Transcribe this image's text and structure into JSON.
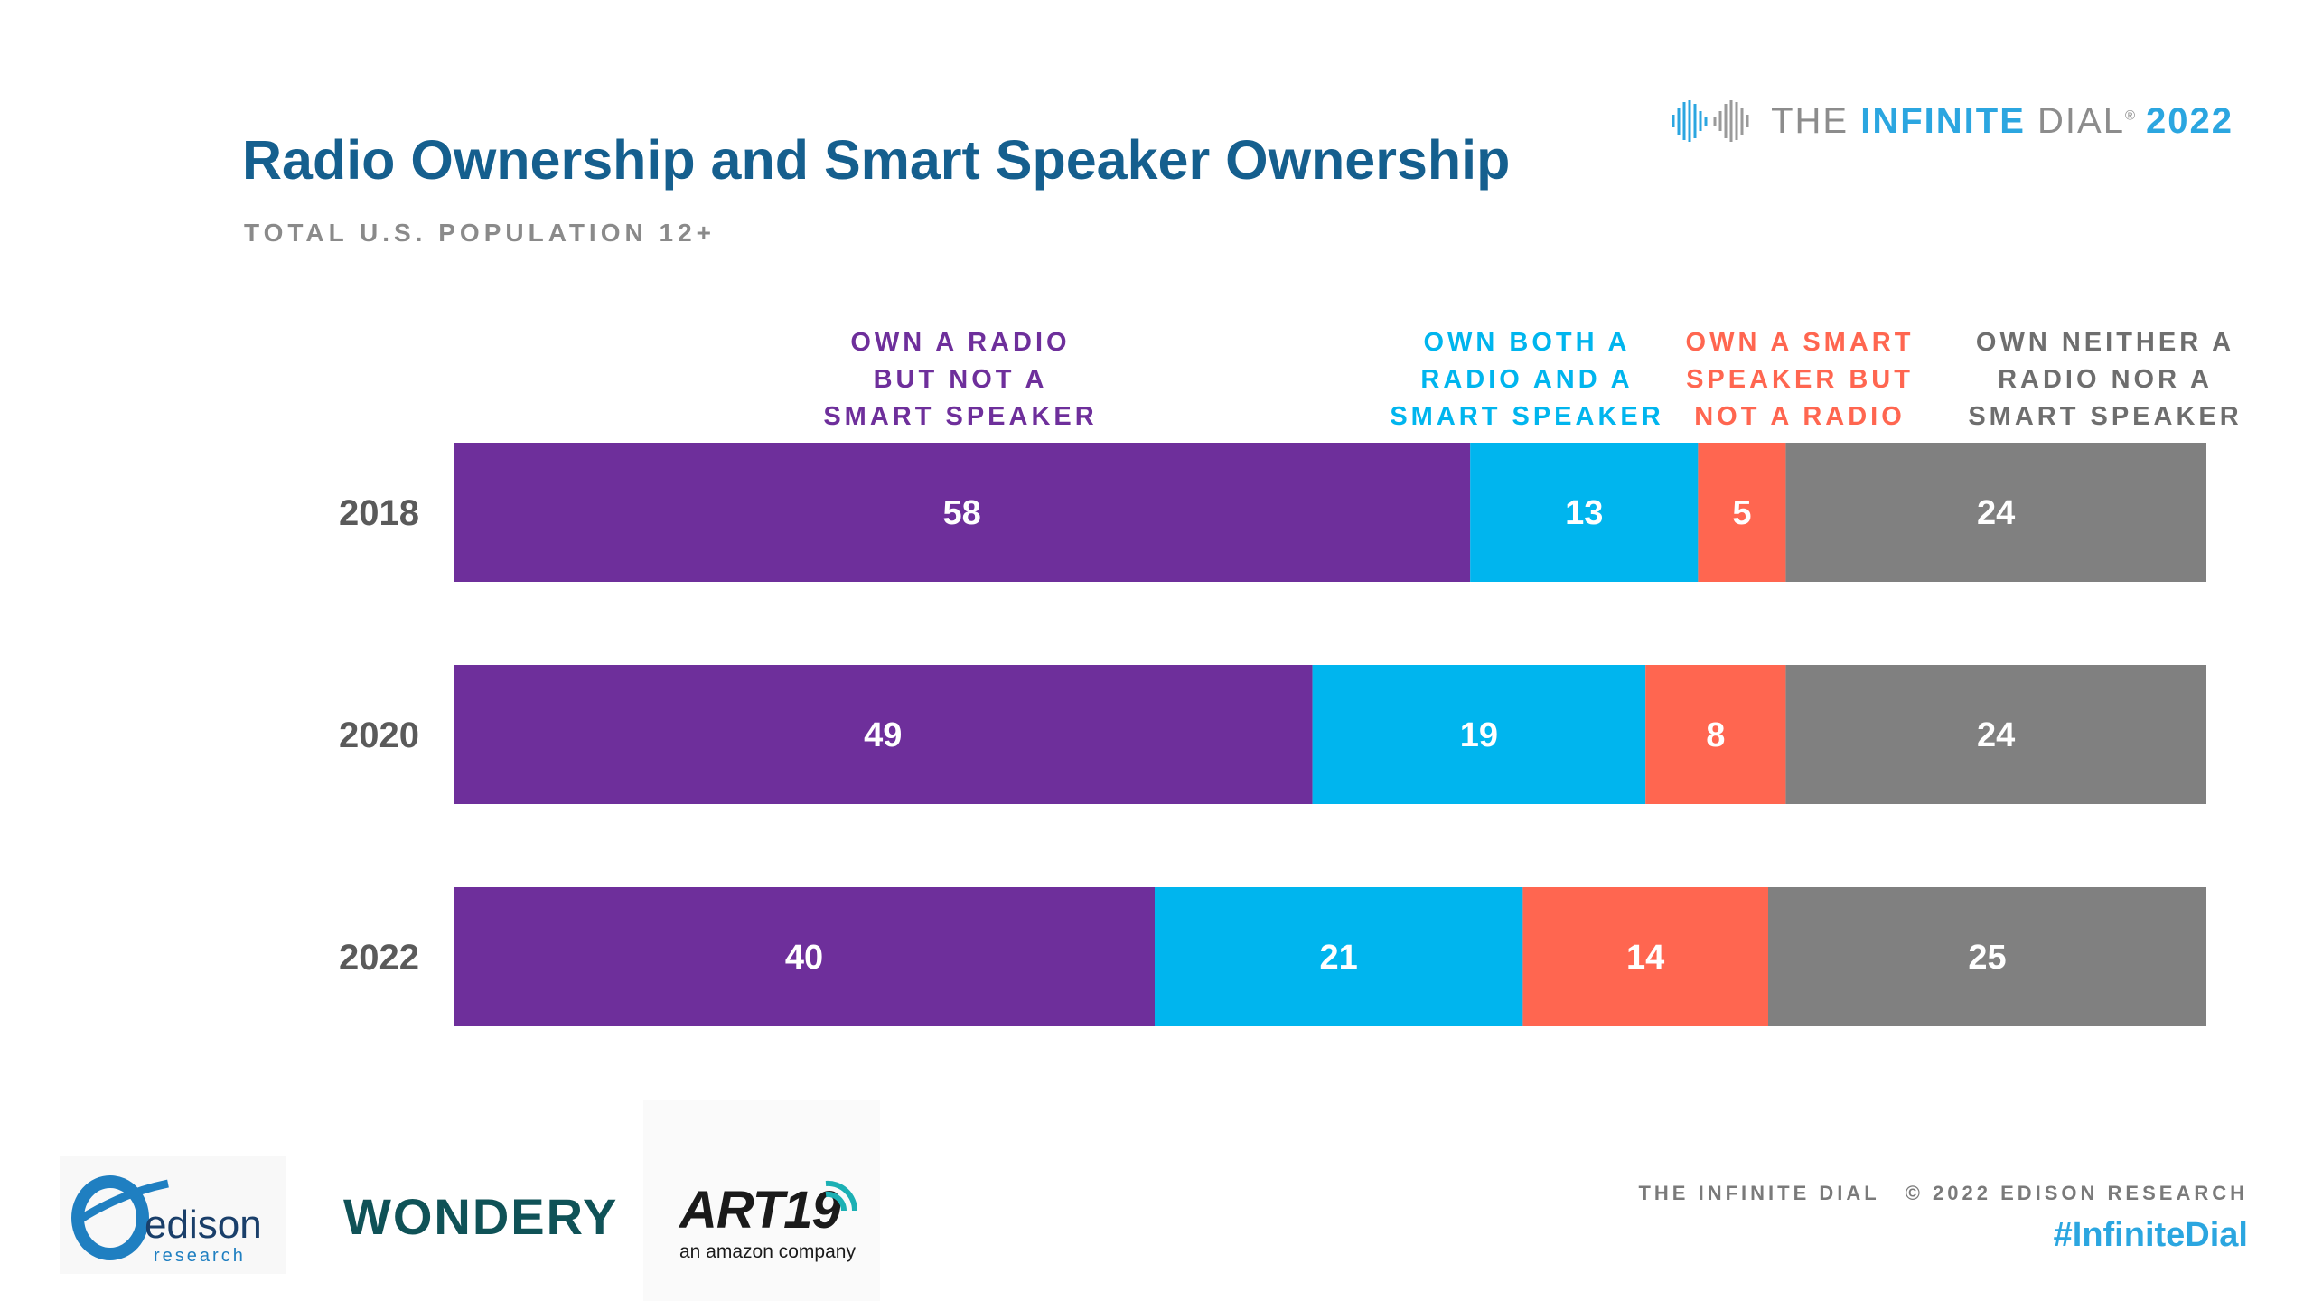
{
  "title": "Radio Ownership and Smart Speaker Ownership",
  "subtitle": "TOTAL U.S. POPULATION 12+",
  "brand": {
    "icon": "infinite-dial-logo-icon",
    "the": "THE",
    "infinite": "INFINITE",
    "dial": "DIAL",
    "registered": "®",
    "year": "2022"
  },
  "footer": {
    "credit_left": "THE INFINITE DIAL",
    "credit_right": "© 2022 EDISON RESEARCH",
    "hashtag": "#InfiniteDial"
  },
  "logos": {
    "edison": "edison",
    "edison_sub": "research",
    "wondery": "WONDERY",
    "art19": "ART19",
    "art19_tag": "an amazon company"
  },
  "colors": {
    "title": "#155f8e",
    "purple": "#6e2f9b",
    "blue": "#00b5ee",
    "orange": "#ff6650",
    "gray": "#808080",
    "brand_blue": "#2ba6e0"
  },
  "chart_data": {
    "type": "bar",
    "orientation": "horizontal",
    "stacked": true,
    "categories": [
      "2018",
      "2020",
      "2022"
    ],
    "series": [
      {
        "name": "OWN A RADIO BUT NOT A SMART SPEAKER",
        "color": "#6e2f9b",
        "values": [
          58,
          49,
          40
        ]
      },
      {
        "name": "OWN BOTH A RADIO AND A SMART SPEAKER",
        "color": "#00b5ee",
        "values": [
          13,
          19,
          21
        ]
      },
      {
        "name": "OWN A SMART SPEAKER BUT NOT A RADIO",
        "color": "#ff6650",
        "values": [
          5,
          8,
          14
        ]
      },
      {
        "name": "OWN NEITHER A RADIO NOR A SMART SPEAKER",
        "color": "#808080",
        "values": [
          24,
          24,
          25
        ]
      }
    ],
    "series_label_lines": [
      [
        "OWN A RADIO",
        "BUT NOT A",
        "SMART SPEAKER"
      ],
      [
        "OWN BOTH A",
        "RADIO AND A",
        "SMART SPEAKER"
      ],
      [
        "OWN A SMART",
        "SPEAKER BUT",
        "NOT A RADIO"
      ],
      [
        "OWN NEITHER A",
        "RADIO NOR A",
        "SMART SPEAKER"
      ]
    ],
    "xlim": [
      0,
      100
    ],
    "data_labels": true,
    "legend": "top",
    "grid": false
  }
}
